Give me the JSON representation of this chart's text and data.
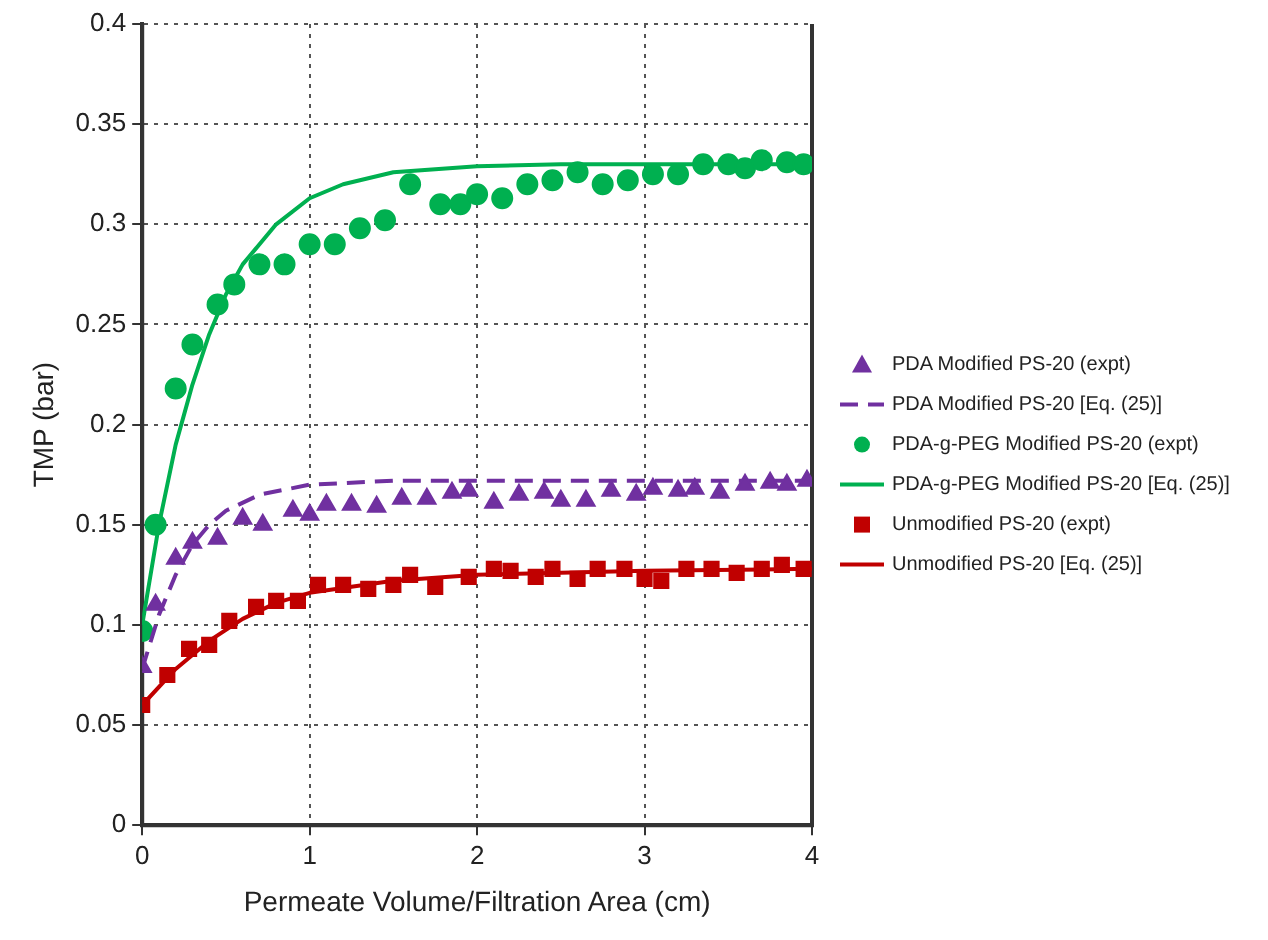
{
  "chart_data": {
    "type": "line",
    "xlabel": "Permeate Volume/Filtration Area (cm)",
    "ylabel": "TMP (bar)",
    "xlim": [
      0,
      4
    ],
    "xticks": [
      0,
      1,
      2,
      3,
      4
    ],
    "ylim": [
      0,
      0.4
    ],
    "yticks": [
      0,
      0.05,
      0.1,
      0.15,
      0.2,
      0.25,
      0.3,
      0.35,
      0.4
    ],
    "grid": true,
    "legend": "right",
    "series": [
      {
        "name": "PDA Modified PS-20 (expt)",
        "type": "scatter",
        "marker": "triangle",
        "color": "#7030a0",
        "x": [
          0,
          0.08,
          0.2,
          0.3,
          0.45,
          0.6,
          0.72,
          0.9,
          1.0,
          1.1,
          1.25,
          1.4,
          1.55,
          1.7,
          1.85,
          1.95,
          2.1,
          2.25,
          2.4,
          2.5,
          2.65,
          2.8,
          2.95,
          3.05,
          3.2,
          3.3,
          3.45,
          3.6,
          3.75,
          3.85,
          3.97
        ],
        "values": [
          0.079,
          0.11,
          0.133,
          0.141,
          0.143,
          0.153,
          0.15,
          0.157,
          0.155,
          0.16,
          0.16,
          0.159,
          0.163,
          0.163,
          0.166,
          0.167,
          0.161,
          0.165,
          0.166,
          0.162,
          0.162,
          0.167,
          0.165,
          0.168,
          0.167,
          0.168,
          0.166,
          0.17,
          0.171,
          0.17,
          0.172
        ]
      },
      {
        "name": "PDA Modified PS-20 [Eq. (25)]",
        "type": "line",
        "marker": "none",
        "line_style": "dashed",
        "color": "#7030a0",
        "x": [
          0,
          0.1,
          0.2,
          0.3,
          0.4,
          0.5,
          0.7,
          1,
          1.5,
          2,
          4
        ],
        "values": [
          0.078,
          0.105,
          0.125,
          0.14,
          0.15,
          0.157,
          0.165,
          0.17,
          0.172,
          0.172,
          0.172
        ]
      },
      {
        "name": "PDA-g-PEG Modified PS-20 (expt)",
        "type": "scatter",
        "marker": "circle",
        "color": "#00b050",
        "x": [
          0,
          0.08,
          0.2,
          0.3,
          0.45,
          0.55,
          0.7,
          0.85,
          1.0,
          1.15,
          1.3,
          1.45,
          1.6,
          1.78,
          1.9,
          2.0,
          2.15,
          2.3,
          2.45,
          2.6,
          2.75,
          2.9,
          3.05,
          3.2,
          3.35,
          3.5,
          3.6,
          3.7,
          3.85,
          3.95
        ],
        "values": [
          0.097,
          0.15,
          0.218,
          0.24,
          0.26,
          0.27,
          0.28,
          0.28,
          0.29,
          0.29,
          0.298,
          0.302,
          0.32,
          0.31,
          0.31,
          0.315,
          0.313,
          0.32,
          0.322,
          0.326,
          0.32,
          0.322,
          0.325,
          0.325,
          0.33,
          0.33,
          0.328,
          0.332,
          0.331,
          0.33
        ]
      },
      {
        "name": "PDA-g-PEG Modified PS-20 [Eq. (25)]",
        "type": "line",
        "marker": "none",
        "line_style": "solid",
        "color": "#00b050",
        "x": [
          0,
          0.1,
          0.2,
          0.3,
          0.4,
          0.5,
          0.6,
          0.8,
          1.0,
          1.2,
          1.5,
          2,
          2.5,
          3,
          4
        ],
        "values": [
          0.1,
          0.15,
          0.19,
          0.22,
          0.245,
          0.265,
          0.28,
          0.3,
          0.313,
          0.32,
          0.326,
          0.329,
          0.33,
          0.33,
          0.33
        ]
      },
      {
        "name": "Unmodified PS-20 (expt)",
        "type": "scatter",
        "marker": "square",
        "color": "#c00000",
        "x": [
          0,
          0.15,
          0.28,
          0.4,
          0.52,
          0.68,
          0.8,
          0.93,
          1.05,
          1.2,
          1.35,
          1.5,
          1.6,
          1.75,
          1.95,
          2.1,
          2.2,
          2.35,
          2.45,
          2.6,
          2.72,
          2.88,
          3.0,
          3.1,
          3.25,
          3.4,
          3.55,
          3.7,
          3.82,
          3.95
        ],
        "values": [
          0.06,
          0.075,
          0.088,
          0.09,
          0.102,
          0.109,
          0.112,
          0.112,
          0.12,
          0.12,
          0.118,
          0.12,
          0.125,
          0.119,
          0.124,
          0.128,
          0.127,
          0.124,
          0.128,
          0.123,
          0.128,
          0.128,
          0.123,
          0.122,
          0.128,
          0.128,
          0.126,
          0.128,
          0.13,
          0.128
        ]
      },
      {
        "name": "Unmodified PS-20 [Eq. (25)]",
        "type": "line",
        "marker": "none",
        "line_style": "solid",
        "color": "#c00000",
        "x": [
          0,
          0.2,
          0.4,
          0.6,
          0.8,
          1,
          1.5,
          2,
          2.5,
          3,
          4
        ],
        "values": [
          0.06,
          0.078,
          0.092,
          0.103,
          0.111,
          0.116,
          0.122,
          0.125,
          0.126,
          0.127,
          0.128
        ]
      }
    ]
  }
}
